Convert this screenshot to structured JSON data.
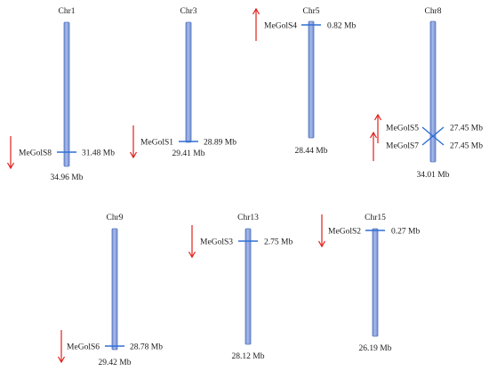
{
  "colors": {
    "chromosome_fill": "#8fa6dc",
    "chromosome_stroke": "#5a76c0",
    "marker": "#2f6fd6",
    "arrow": "#e0201c",
    "text": "#1a1a1a"
  },
  "chromosomes": [
    {
      "name": "Chr1",
      "length_label": "34.96 Mb",
      "length_mb": 34.96
    },
    {
      "name": "Chr3",
      "length_label": "29.41 Mb",
      "length_mb": 29.41
    },
    {
      "name": "Chr5",
      "length_label": "28.44 Mb",
      "length_mb": 28.44
    },
    {
      "name": "Chr8",
      "length_label": "34.01 Mb",
      "length_mb": 34.01
    },
    {
      "name": "Chr9",
      "length_label": "29.42 Mb",
      "length_mb": 29.42
    },
    {
      "name": "Chr13",
      "length_label": "28.12 Mb",
      "length_mb": 28.12
    },
    {
      "name": "Chr15",
      "length_label": "26.19 Mb",
      "length_mb": 26.19
    }
  ],
  "genes": [
    {
      "name": "MeGolS8",
      "chromosome": "Chr1",
      "position_label": "31.48 Mb",
      "position_mb": 31.48,
      "strand": "down"
    },
    {
      "name": "MeGolS1",
      "chromosome": "Chr3",
      "position_label": "28.89 Mb",
      "position_mb": 28.89,
      "strand": "down"
    },
    {
      "name": "MeGolS4",
      "chromosome": "Chr5",
      "position_label": "0.82 Mb",
      "position_mb": 0.82,
      "strand": "up"
    },
    {
      "name": "MeGolS5",
      "chromosome": "Chr8",
      "position_label": "27.45 Mb",
      "position_mb": 27.45,
      "strand": "up"
    },
    {
      "name": "MeGolS7",
      "chromosome": "Chr8",
      "position_label": "27.45 Mb",
      "position_mb": 27.45,
      "strand": "up"
    },
    {
      "name": "MeGolS6",
      "chromosome": "Chr9",
      "position_label": "28.78 Mb",
      "position_mb": 28.78,
      "strand": "down"
    },
    {
      "name": "MeGolS3",
      "chromosome": "Chr13",
      "position_label": "2.75 Mb",
      "position_mb": 2.75,
      "strand": "down"
    },
    {
      "name": "MeGolS2",
      "chromosome": "Chr15",
      "position_label": "0.27 Mb",
      "position_mb": 0.27,
      "strand": "down"
    }
  ]
}
